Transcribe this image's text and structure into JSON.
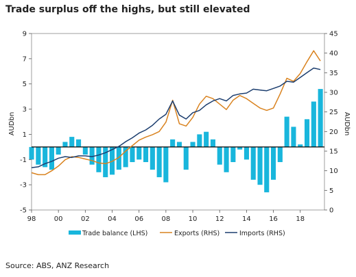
{
  "title": "Trade surplus off the highs, but still elevated",
  "source": "Source: ABS, ANZ Research",
  "colors": {
    "trade": "#19b6dc",
    "exports": "#d9821e",
    "imports": "#1b3d6e"
  },
  "chart_data": {
    "type": "bar",
    "title": "Trade surplus off the highs, but still elevated",
    "ylabel_left": "AUDbn",
    "ylabel_right": "AUDbn",
    "ylim_left": [
      -5,
      9
    ],
    "ylim_right": [
      0,
      45
    ],
    "yticks_left": [
      "9",
      "7",
      "5",
      "3",
      "1",
      "-1",
      "-3",
      "-5"
    ],
    "yticks_right": [
      "45",
      "40",
      "35",
      "30",
      "25",
      "20",
      "15",
      "10",
      "5",
      "0"
    ],
    "xlim": [
      1998,
      2019.8
    ],
    "xticks": [
      "98",
      "00",
      "02",
      "04",
      "06",
      "08",
      "10",
      "12",
      "14",
      "16",
      "18"
    ],
    "legend_position": "bottom",
    "legend": [
      "Trade balance (LHS)",
      "Exports (RHS)",
      "Imports (RHS)"
    ],
    "series": [
      {
        "name": "Trade balance (LHS)",
        "type": "bar",
        "axis": "left",
        "x": [
          1998.0,
          1998.5,
          1999.0,
          1999.5,
          2000.0,
          2000.5,
          2001.0,
          2001.5,
          2002.0,
          2002.5,
          2003.0,
          2003.5,
          2004.0,
          2004.5,
          2005.0,
          2005.5,
          2006.0,
          2006.5,
          2007.0,
          2007.5,
          2008.0,
          2008.5,
          2009.0,
          2009.5,
          2010.0,
          2010.5,
          2011.0,
          2011.5,
          2012.0,
          2012.5,
          2013.0,
          2013.5,
          2014.0,
          2014.5,
          2015.0,
          2015.5,
          2016.0,
          2016.5,
          2017.0,
          2017.5,
          2018.0,
          2018.5,
          2019.0,
          2019.5
        ],
        "values": [
          -1.0,
          -1.4,
          -1.6,
          -1.8,
          -0.6,
          0.4,
          0.8,
          0.6,
          -0.6,
          -1.4,
          -2.0,
          -2.4,
          -2.2,
          -1.8,
          -1.6,
          -1.2,
          -1.0,
          -1.2,
          -1.8,
          -2.4,
          -2.8,
          0.6,
          0.4,
          -1.8,
          0.4,
          1.0,
          1.2,
          0.6,
          -1.4,
          -2.0,
          -1.2,
          -0.2,
          -1.0,
          -2.6,
          -3.0,
          -3.6,
          -2.6,
          -1.2,
          2.4,
          1.6,
          0.2,
          2.2,
          3.6,
          4.6
        ]
      },
      {
        "name": "Exports (RHS)",
        "type": "line",
        "axis": "right",
        "x": [
          1998.0,
          1998.5,
          1999.0,
          1999.5,
          2000.0,
          2000.5,
          2001.0,
          2001.5,
          2002.0,
          2002.5,
          2003.0,
          2003.5,
          2004.0,
          2004.5,
          2005.0,
          2005.5,
          2006.0,
          2006.5,
          2007.0,
          2007.5,
          2008.0,
          2008.5,
          2009.0,
          2009.5,
          2010.0,
          2010.5,
          2011.0,
          2011.5,
          2012.0,
          2012.5,
          2013.0,
          2013.5,
          2014.0,
          2014.5,
          2015.0,
          2015.5,
          2016.0,
          2016.5,
          2017.0,
          2017.5,
          2018.0,
          2018.5,
          2019.0,
          2019.5
        ],
        "values": [
          9.5,
          9.0,
          9.0,
          10.0,
          11.2,
          12.8,
          13.6,
          13.4,
          13.0,
          12.6,
          12.0,
          11.8,
          12.4,
          13.4,
          15.0,
          16.4,
          17.8,
          18.6,
          19.2,
          20.0,
          22.4,
          28.0,
          22.0,
          21.4,
          23.6,
          27.0,
          29.0,
          28.4,
          27.0,
          25.6,
          28.0,
          29.2,
          28.4,
          27.2,
          26.0,
          25.4,
          26.0,
          29.6,
          33.6,
          32.8,
          34.8,
          37.8,
          40.6,
          38.0
        ]
      },
      {
        "name": "Imports (RHS)",
        "type": "line",
        "axis": "right",
        "x": [
          1998.0,
          1998.5,
          1999.0,
          1999.5,
          2000.0,
          2000.5,
          2001.0,
          2001.5,
          2002.0,
          2002.5,
          2003.0,
          2003.5,
          2004.0,
          2004.5,
          2005.0,
          2005.5,
          2006.0,
          2006.5,
          2007.0,
          2007.5,
          2008.0,
          2008.5,
          2009.0,
          2009.5,
          2010.0,
          2010.5,
          2011.0,
          2011.5,
          2012.0,
          2012.5,
          2013.0,
          2013.5,
          2014.0,
          2014.5,
          2015.0,
          2015.5,
          2016.0,
          2016.5,
          2017.0,
          2017.5,
          2018.0,
          2018.5,
          2019.0,
          2019.5
        ],
        "values": [
          10.8,
          11.0,
          11.8,
          12.4,
          13.2,
          13.6,
          13.4,
          13.8,
          13.8,
          13.6,
          14.0,
          14.6,
          15.4,
          16.2,
          17.4,
          18.4,
          19.6,
          20.4,
          21.6,
          23.2,
          24.4,
          27.8,
          24.2,
          23.2,
          24.8,
          25.4,
          26.8,
          27.8,
          28.4,
          27.8,
          29.2,
          29.6,
          29.8,
          30.8,
          30.6,
          30.4,
          31.0,
          31.6,
          32.8,
          32.6,
          33.8,
          35.0,
          36.2,
          35.8
        ]
      }
    ]
  }
}
